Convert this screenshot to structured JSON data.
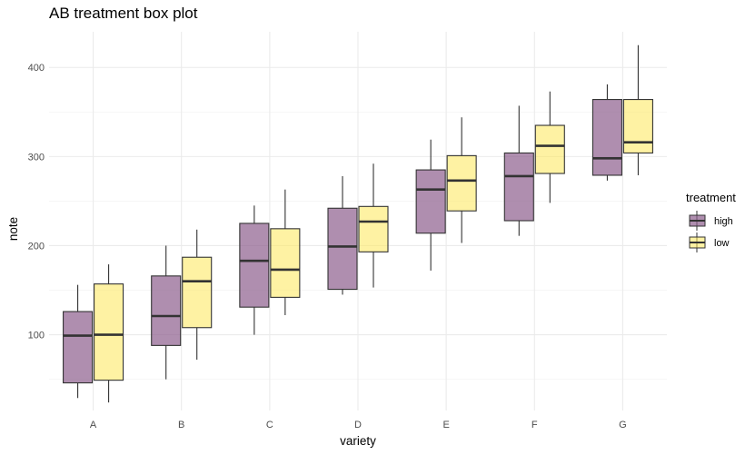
{
  "chart_data": {
    "type": "box",
    "title": "AB treatment box plot",
    "xlabel": "variety",
    "ylabel": "note",
    "categories": [
      "A",
      "B",
      "C",
      "D",
      "E",
      "F",
      "G"
    ],
    "yticks": [
      "100",
      "200",
      "300",
      "400"
    ],
    "ylim": [
      15,
      440
    ],
    "grid": true,
    "legend": {
      "title": "treatment",
      "position": "right"
    },
    "series": [
      {
        "name": "high",
        "color": "#8d5e8d",
        "boxes": [
          {
            "min": 29,
            "q1": 46,
            "median": 99,
            "q3": 126,
            "max": 156
          },
          {
            "min": 50,
            "q1": 88,
            "median": 121,
            "q3": 166,
            "max": 200
          },
          {
            "min": 100,
            "q1": 131,
            "median": 183,
            "q3": 225,
            "max": 245
          },
          {
            "min": 145,
            "q1": 151,
            "median": 199,
            "q3": 242,
            "max": 278
          },
          {
            "min": 172,
            "q1": 214,
            "median": 263,
            "q3": 285,
            "max": 319
          },
          {
            "min": 211,
            "q1": 228,
            "median": 278,
            "q3": 304,
            "max": 357
          },
          {
            "min": 273,
            "q1": 279,
            "median": 298,
            "q3": 364,
            "max": 381
          }
        ]
      },
      {
        "name": "low",
        "color": "#fde857",
        "boxes": [
          {
            "min": 24,
            "q1": 49,
            "median": 100,
            "q3": 157,
            "max": 179
          },
          {
            "min": 72,
            "q1": 108,
            "median": 160,
            "q3": 187,
            "max": 218
          },
          {
            "min": 122,
            "q1": 142,
            "median": 173,
            "q3": 219,
            "max": 263
          },
          {
            "min": 153,
            "q1": 193,
            "median": 227,
            "q3": 244,
            "max": 292
          },
          {
            "min": 203,
            "q1": 239,
            "median": 273,
            "q3": 301,
            "max": 344
          },
          {
            "min": 248,
            "q1": 281,
            "median": 312,
            "q3": 335,
            "max": 373
          },
          {
            "min": 279,
            "q1": 304,
            "median": 316,
            "q3": 364,
            "max": 425
          }
        ]
      }
    ]
  }
}
